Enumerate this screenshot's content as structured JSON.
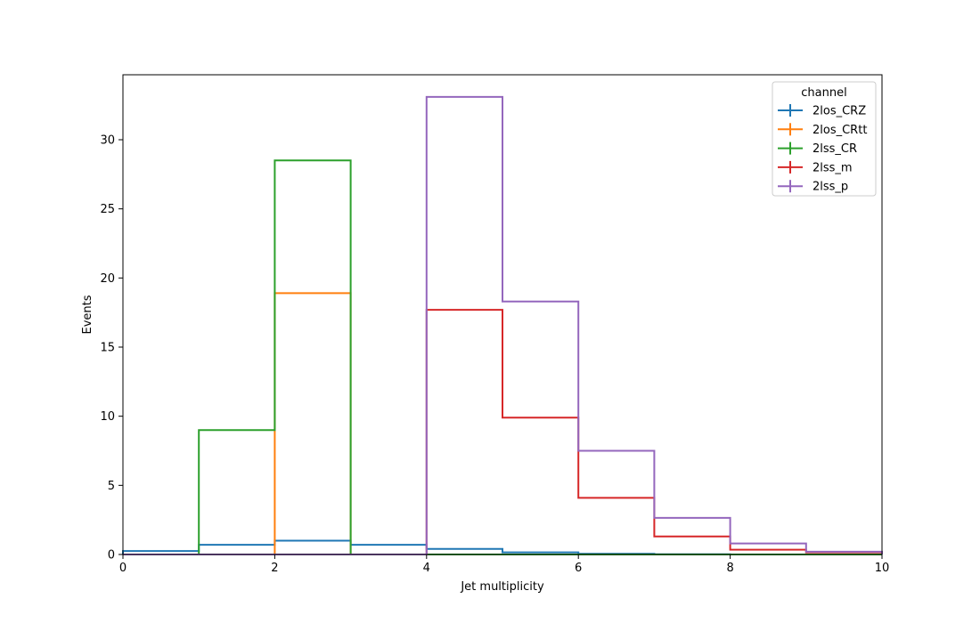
{
  "chart_data": {
    "type": "step-histogram",
    "xlabel": "Jet multiplicity",
    "ylabel": "Events",
    "xlim": [
      0,
      10
    ],
    "ylim": [
      0,
      34.7
    ],
    "xticks": [
      0,
      2,
      4,
      6,
      8,
      10
    ],
    "yticks": [
      0,
      5,
      10,
      15,
      20,
      25,
      30
    ],
    "bin_edges": [
      0,
      1,
      2,
      3,
      4,
      5,
      6,
      7,
      8,
      9,
      10
    ],
    "grid": false,
    "legend": {
      "title": "channel",
      "placement": "top-right"
    },
    "series": [
      {
        "name": "2los_CRZ",
        "color": "#1f77b4",
        "values": [
          0.25,
          0.7,
          1.0,
          0.7,
          0.4,
          0.15,
          0.05,
          0.02,
          0.0,
          0.0
        ]
      },
      {
        "name": "2los_CRtt",
        "color": "#ff7f0e",
        "values": [
          0.0,
          0.0,
          18.9,
          0.0,
          0.0,
          0.0,
          0.0,
          0.0,
          0.0,
          0.0
        ]
      },
      {
        "name": "2lss_CR",
        "color": "#2ca02c",
        "values": [
          0.0,
          9.0,
          28.5,
          0.0,
          0.0,
          0.0,
          0.0,
          0.0,
          0.0,
          0.0
        ]
      },
      {
        "name": "2lss_m",
        "color": "#d62728",
        "values": [
          0.0,
          0.0,
          0.0,
          0.0,
          17.7,
          9.9,
          4.1,
          1.3,
          0.35,
          0.15
        ]
      },
      {
        "name": "2lss_p",
        "color": "#9467bd",
        "values": [
          0.0,
          0.0,
          0.0,
          0.0,
          33.1,
          18.3,
          7.5,
          2.65,
          0.8,
          0.2
        ]
      }
    ]
  }
}
